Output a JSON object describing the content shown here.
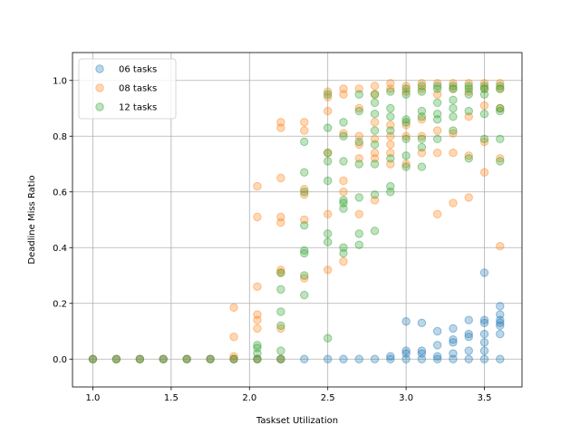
{
  "chart_data": {
    "type": "scatter",
    "title": "",
    "xlabel": "Taskset Utilization",
    "ylabel": "Deadline Miss Ratio",
    "xlim": [
      0.87,
      3.74
    ],
    "ylim": [
      -0.1,
      1.1
    ],
    "xticks": [
      1.0,
      1.5,
      2.0,
      2.5,
      3.0,
      3.5
    ],
    "xtick_labels": [
      "1.0",
      "1.5",
      "2.0",
      "2.5",
      "3.0",
      "3.5"
    ],
    "yticks": [
      0.0,
      0.2,
      0.4,
      0.6,
      0.8,
      1.0
    ],
    "ytick_labels": [
      "0.0",
      "0.2",
      "0.4",
      "0.6",
      "0.8",
      "1.0"
    ],
    "grid": true,
    "legend_position": "top-left",
    "series": [
      {
        "name": "06 tasks",
        "color": "#1f77b4",
        "points": [
          [
            1.0,
            0
          ],
          [
            1.15,
            0
          ],
          [
            1.3,
            0
          ],
          [
            1.45,
            0
          ],
          [
            1.6,
            0
          ],
          [
            1.75,
            0
          ],
          [
            1.9,
            0
          ],
          [
            2.05,
            0
          ],
          [
            2.2,
            0
          ],
          [
            2.35,
            0
          ],
          [
            2.5,
            0
          ],
          [
            2.6,
            0
          ],
          [
            2.7,
            0
          ],
          [
            2.8,
            0
          ],
          [
            2.9,
            0
          ],
          [
            2.9,
            0.01
          ],
          [
            3.0,
            0
          ],
          [
            3.0,
            0.02
          ],
          [
            3.0,
            0.03
          ],
          [
            3.0,
            0.135
          ],
          [
            3.1,
            0
          ],
          [
            3.1,
            0.02
          ],
          [
            3.1,
            0.03
          ],
          [
            3.1,
            0.13
          ],
          [
            3.2,
            0
          ],
          [
            3.2,
            0.01
          ],
          [
            3.2,
            0.05
          ],
          [
            3.2,
            0.1
          ],
          [
            3.3,
            0
          ],
          [
            3.3,
            0.02
          ],
          [
            3.3,
            0.06
          ],
          [
            3.3,
            0.07
          ],
          [
            3.3,
            0.11
          ],
          [
            3.4,
            0
          ],
          [
            3.4,
            0.03
          ],
          [
            3.4,
            0.08
          ],
          [
            3.4,
            0.09
          ],
          [
            3.4,
            0.14
          ],
          [
            3.5,
            0
          ],
          [
            3.5,
            0.03
          ],
          [
            3.5,
            0.06
          ],
          [
            3.5,
            0.09
          ],
          [
            3.5,
            0.13
          ],
          [
            3.5,
            0.14
          ],
          [
            3.5,
            0.31
          ],
          [
            3.6,
            0
          ],
          [
            3.6,
            0.09
          ],
          [
            3.6,
            0.12
          ],
          [
            3.6,
            0.13
          ],
          [
            3.6,
            0.14
          ],
          [
            3.6,
            0.16
          ],
          [
            3.6,
            0.19
          ]
        ]
      },
      {
        "name": "08 tasks",
        "color": "#ff7f0e",
        "points": [
          [
            1.0,
            0
          ],
          [
            1.15,
            0
          ],
          [
            1.3,
            0
          ],
          [
            1.45,
            0
          ],
          [
            1.6,
            0
          ],
          [
            1.75,
            0
          ],
          [
            1.9,
            0
          ],
          [
            1.9,
            0.01
          ],
          [
            1.9,
            0.08
          ],
          [
            1.9,
            0.185
          ],
          [
            2.05,
            0
          ],
          [
            2.05,
            0.11
          ],
          [
            2.05,
            0.14
          ],
          [
            2.05,
            0.16
          ],
          [
            2.05,
            0.26
          ],
          [
            2.05,
            0.51
          ],
          [
            2.05,
            0.62
          ],
          [
            2.2,
            0
          ],
          [
            2.2,
            0.11
          ],
          [
            2.2,
            0.31
          ],
          [
            2.2,
            0.32
          ],
          [
            2.2,
            0.49
          ],
          [
            2.2,
            0.51
          ],
          [
            2.2,
            0.65
          ],
          [
            2.2,
            0.83
          ],
          [
            2.2,
            0.85
          ],
          [
            2.35,
            0.29
          ],
          [
            2.35,
            0.5
          ],
          [
            2.35,
            0.59
          ],
          [
            2.35,
            0.61
          ],
          [
            2.35,
            0.82
          ],
          [
            2.35,
            0.85
          ],
          [
            2.5,
            0.32
          ],
          [
            2.5,
            0.52
          ],
          [
            2.5,
            0.74
          ],
          [
            2.5,
            0.89
          ],
          [
            2.5,
            0.94
          ],
          [
            2.5,
            0.96
          ],
          [
            2.6,
            0.35
          ],
          [
            2.6,
            0.6
          ],
          [
            2.6,
            0.64
          ],
          [
            2.6,
            0.81
          ],
          [
            2.6,
            0.95
          ],
          [
            2.6,
            0.97
          ],
          [
            2.7,
            0.52
          ],
          [
            2.7,
            0.72
          ],
          [
            2.7,
            0.77
          ],
          [
            2.7,
            0.8
          ],
          [
            2.7,
            0.9
          ],
          [
            2.7,
            0.97
          ],
          [
            2.8,
            0.57
          ],
          [
            2.8,
            0.72
          ],
          [
            2.8,
            0.74
          ],
          [
            2.8,
            0.79
          ],
          [
            2.8,
            0.85
          ],
          [
            2.8,
            0.95
          ],
          [
            2.8,
            0.98
          ],
          [
            2.9,
            0.7
          ],
          [
            2.9,
            0.74
          ],
          [
            2.9,
            0.77
          ],
          [
            2.9,
            0.8
          ],
          [
            2.9,
            0.84
          ],
          [
            2.9,
            0.97
          ],
          [
            2.9,
            0.99
          ],
          [
            3.0,
            0.7
          ],
          [
            3.0,
            0.8
          ],
          [
            3.0,
            0.84
          ],
          [
            3.0,
            0.96
          ],
          [
            3.0,
            0.98
          ],
          [
            3.1,
            0.74
          ],
          [
            3.1,
            0.8
          ],
          [
            3.1,
            0.86
          ],
          [
            3.1,
            0.97
          ],
          [
            3.1,
            0.99
          ],
          [
            3.2,
            0.52
          ],
          [
            3.2,
            0.74
          ],
          [
            3.2,
            0.82
          ],
          [
            3.2,
            0.95
          ],
          [
            3.2,
            0.99
          ],
          [
            3.3,
            0.56
          ],
          [
            3.3,
            0.74
          ],
          [
            3.3,
            0.81
          ],
          [
            3.3,
            0.97
          ],
          [
            3.3,
            0.99
          ],
          [
            3.4,
            0.58
          ],
          [
            3.4,
            0.73
          ],
          [
            3.4,
            0.87
          ],
          [
            3.4,
            0.96
          ],
          [
            3.4,
            0.99
          ],
          [
            3.5,
            0.67
          ],
          [
            3.5,
            0.78
          ],
          [
            3.5,
            0.91
          ],
          [
            3.5,
            0.97
          ],
          [
            3.5,
            0.99
          ],
          [
            3.6,
            0.405
          ],
          [
            3.6,
            0.72
          ],
          [
            3.6,
            0.9
          ],
          [
            3.6,
            0.97
          ],
          [
            3.6,
            0.99
          ]
        ]
      },
      {
        "name": "12 tasks",
        "color": "#2ca02c",
        "points": [
          [
            1.0,
            0
          ],
          [
            1.15,
            0
          ],
          [
            1.3,
            0
          ],
          [
            1.45,
            0
          ],
          [
            1.6,
            0
          ],
          [
            1.75,
            0
          ],
          [
            1.9,
            0
          ],
          [
            2.05,
            0
          ],
          [
            2.05,
            0.02
          ],
          [
            2.05,
            0.04
          ],
          [
            2.05,
            0.05
          ],
          [
            2.2,
            0
          ],
          [
            2.2,
            0.03
          ],
          [
            2.2,
            0.12
          ],
          [
            2.2,
            0.17
          ],
          [
            2.2,
            0.25
          ],
          [
            2.2,
            0.31
          ],
          [
            2.35,
            0.23
          ],
          [
            2.35,
            0.3
          ],
          [
            2.35,
            0.38
          ],
          [
            2.35,
            0.39
          ],
          [
            2.35,
            0.48
          ],
          [
            2.35,
            0.6
          ],
          [
            2.35,
            0.67
          ],
          [
            2.35,
            0.78
          ],
          [
            2.5,
            0.075
          ],
          [
            2.5,
            0.42
          ],
          [
            2.5,
            0.45
          ],
          [
            2.5,
            0.64
          ],
          [
            2.5,
            0.71
          ],
          [
            2.5,
            0.74
          ],
          [
            2.5,
            0.83
          ],
          [
            2.5,
            0.95
          ],
          [
            2.6,
            0.38
          ],
          [
            2.6,
            0.4
          ],
          [
            2.6,
            0.54
          ],
          [
            2.6,
            0.56
          ],
          [
            2.6,
            0.57
          ],
          [
            2.6,
            0.71
          ],
          [
            2.6,
            0.8
          ],
          [
            2.6,
            0.85
          ],
          [
            2.7,
            0.41
          ],
          [
            2.7,
            0.45
          ],
          [
            2.7,
            0.58
          ],
          [
            2.7,
            0.7
          ],
          [
            2.7,
            0.78
          ],
          [
            2.7,
            0.89
          ],
          [
            2.7,
            0.95
          ],
          [
            2.8,
            0.46
          ],
          [
            2.8,
            0.59
          ],
          [
            2.8,
            0.7
          ],
          [
            2.8,
            0.77
          ],
          [
            2.8,
            0.82
          ],
          [
            2.8,
            0.88
          ],
          [
            2.8,
            0.92
          ],
          [
            2.8,
            0.95
          ],
          [
            2.9,
            0.6
          ],
          [
            2.9,
            0.62
          ],
          [
            2.9,
            0.72
          ],
          [
            2.9,
            0.82
          ],
          [
            2.9,
            0.87
          ],
          [
            2.9,
            0.9
          ],
          [
            2.9,
            0.96
          ],
          [
            3.0,
            0.69
          ],
          [
            3.0,
            0.73
          ],
          [
            3.0,
            0.79
          ],
          [
            3.0,
            0.85
          ],
          [
            3.0,
            0.86
          ],
          [
            3.0,
            0.95
          ],
          [
            3.0,
            0.97
          ],
          [
            3.1,
            0.69
          ],
          [
            3.1,
            0.76
          ],
          [
            3.1,
            0.79
          ],
          [
            3.1,
            0.87
          ],
          [
            3.1,
            0.89
          ],
          [
            3.1,
            0.96
          ],
          [
            3.1,
            0.98
          ],
          [
            3.2,
            0.79
          ],
          [
            3.2,
            0.86
          ],
          [
            3.2,
            0.88
          ],
          [
            3.2,
            0.92
          ],
          [
            3.2,
            0.97
          ],
          [
            3.2,
            0.98
          ],
          [
            3.3,
            0.82
          ],
          [
            3.3,
            0.87
          ],
          [
            3.3,
            0.9
          ],
          [
            3.3,
            0.93
          ],
          [
            3.3,
            0.97
          ],
          [
            3.3,
            0.98
          ],
          [
            3.4,
            0.72
          ],
          [
            3.4,
            0.89
          ],
          [
            3.4,
            0.95
          ],
          [
            3.4,
            0.97
          ],
          [
            3.4,
            0.98
          ],
          [
            3.5,
            0.79
          ],
          [
            3.5,
            0.88
          ],
          [
            3.5,
            0.95
          ],
          [
            3.5,
            0.97
          ],
          [
            3.5,
            0.98
          ],
          [
            3.6,
            0.71
          ],
          [
            3.6,
            0.79
          ],
          [
            3.6,
            0.89
          ],
          [
            3.6,
            0.9
          ],
          [
            3.6,
            0.97
          ],
          [
            3.6,
            0.98
          ]
        ]
      }
    ]
  }
}
